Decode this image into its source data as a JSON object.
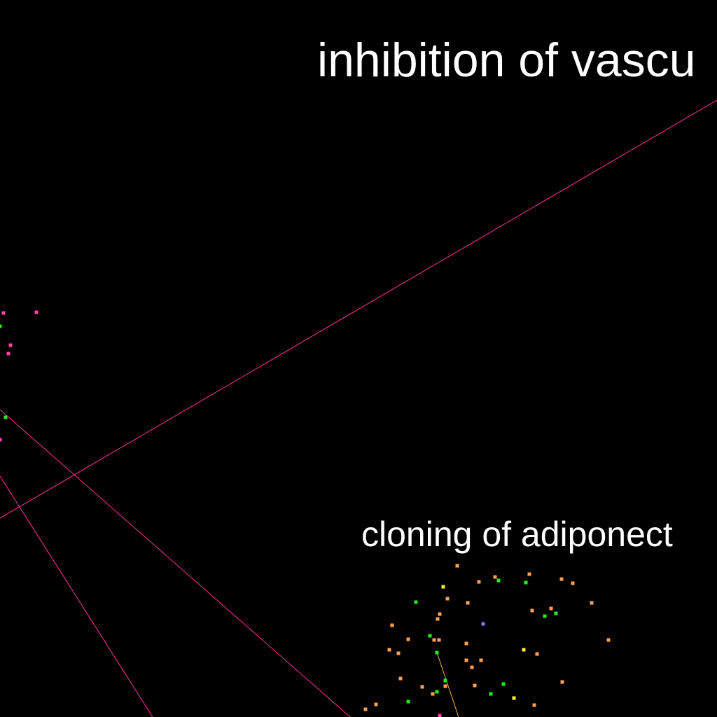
{
  "labels": {
    "top_cluster": "inhibition of vascu",
    "bottom_cluster": "cloning of adiponect"
  },
  "colors": {
    "background": "#000000",
    "edge_magenta": "#ff3399",
    "edge_orange": "#ffaa44",
    "node_pink": "#ff44aa",
    "node_green": "#22ee22",
    "node_orange": "#ffa050",
    "node_yellow": "#ffee33",
    "node_violet": "#8877ff"
  }
}
